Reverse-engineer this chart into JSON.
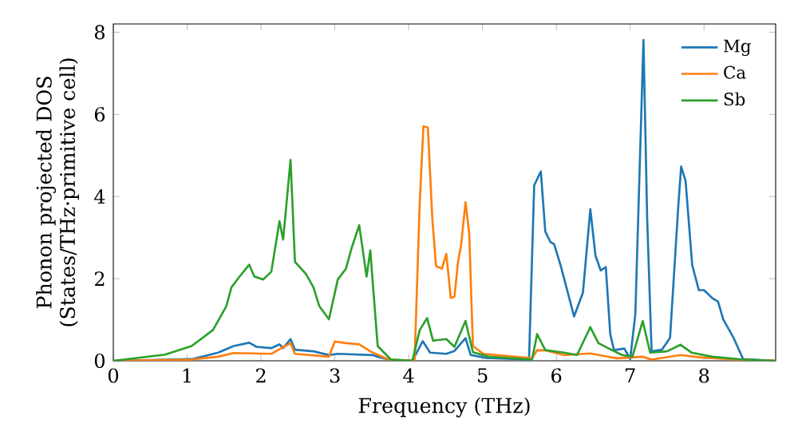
{
  "chart_data": {
    "type": "line",
    "xlabel": "Frequency (THz)",
    "ylabel": "Phonon projected DOS\n(States/THz·primitive cell)",
    "xlim": [
      0,
      8.97
    ],
    "ylim": [
      0,
      8.2
    ],
    "xticks": [
      0,
      1,
      2,
      3,
      4,
      5,
      6,
      7,
      8
    ],
    "yticks": [
      0,
      2,
      4,
      6,
      8
    ],
    "legend": "top right",
    "grid": false,
    "marker": "none",
    "line_style": "solid",
    "series": [
      {
        "name": "Mg",
        "color": "#1f77b4",
        "x": [
          0,
          1.06,
          1.42,
          1.63,
          1.84,
          1.94,
          2.14,
          2.25,
          2.3,
          2.4,
          2.46,
          2.71,
          2.92,
          3.04,
          3.51,
          3.58,
          3.73,
          4.05,
          4.19,
          4.29,
          4.51,
          4.62,
          4.77,
          4.84,
          5.05,
          5.63,
          5.7,
          5.79,
          5.85,
          5.92,
          5.97,
          6.06,
          6.24,
          6.36,
          6.46,
          6.53,
          6.6,
          6.67,
          6.73,
          6.78,
          6.92,
          7.0,
          7.07,
          7.18,
          7.23,
          7.29,
          7.43,
          7.54,
          7.65,
          7.69,
          7.75,
          7.84,
          7.93,
          8.0,
          8.11,
          8.19,
          8.26,
          8.4,
          8.53,
          8.97
        ],
        "values": [
          0,
          0.04,
          0.2,
          0.36,
          0.44,
          0.34,
          0.31,
          0.4,
          0.31,
          0.53,
          0.27,
          0.23,
          0.14,
          0.17,
          0.14,
          0.1,
          0.03,
          0,
          0.48,
          0.2,
          0.17,
          0.24,
          0.55,
          0.14,
          0.07,
          0.03,
          4.27,
          4.61,
          3.15,
          2.89,
          2.84,
          2.31,
          1.08,
          1.66,
          3.69,
          2.56,
          2.2,
          2.28,
          0.65,
          0.26,
          0.3,
          0.04,
          1.14,
          7.81,
          3.47,
          0.23,
          0.27,
          0.56,
          3.73,
          4.73,
          4.38,
          2.33,
          1.72,
          1.72,
          1.53,
          1.44,
          1.01,
          0.56,
          0.04,
          0
        ]
      },
      {
        "name": "Ca",
        "color": "#ff7f0e",
        "x": [
          0,
          1.06,
          1.42,
          1.63,
          2.14,
          2.4,
          2.46,
          2.92,
          3.0,
          3.15,
          3.33,
          3.48,
          3.73,
          4.08,
          4.15,
          4.2,
          4.26,
          4.32,
          4.37,
          4.45,
          4.51,
          4.57,
          4.62,
          4.67,
          4.71,
          4.77,
          4.82,
          4.87,
          5.01,
          5.67,
          5.74,
          5.87,
          6.1,
          6.46,
          6.82,
          7.17,
          7.29,
          7.68,
          7.97,
          8.47,
          8.97
        ],
        "values": [
          0,
          0.03,
          0.1,
          0.19,
          0.17,
          0.43,
          0.17,
          0.1,
          0.47,
          0.43,
          0.4,
          0.23,
          0.03,
          0,
          3.86,
          5.71,
          5.68,
          3.47,
          2.31,
          2.24,
          2.6,
          1.53,
          1.56,
          2.43,
          2.82,
          3.86,
          3.1,
          0.36,
          0.17,
          0.06,
          0.26,
          0.25,
          0.14,
          0.18,
          0.06,
          0.1,
          0.03,
          0.14,
          0.08,
          0.03,
          0
        ]
      },
      {
        "name": "Sb",
        "color": "#2ca02c",
        "x": [
          0,
          0.7,
          1.06,
          1.35,
          1.53,
          1.6,
          1.71,
          1.84,
          1.91,
          2.03,
          2.14,
          2.25,
          2.3,
          2.4,
          2.46,
          2.61,
          2.71,
          2.79,
          2.92,
          3.04,
          3.15,
          3.23,
          3.33,
          3.43,
          3.48,
          3.58,
          3.76,
          4.05,
          4.15,
          4.25,
          4.33,
          4.51,
          4.62,
          4.77,
          4.87,
          5.09,
          5.67,
          5.74,
          5.85,
          6.1,
          6.28,
          6.46,
          6.57,
          6.71,
          6.89,
          7.03,
          7.17,
          7.27,
          7.5,
          7.68,
          7.83,
          8.11,
          8.54,
          8.97
        ],
        "values": [
          0,
          0.15,
          0.36,
          0.75,
          1.33,
          1.79,
          2.05,
          2.34,
          2.05,
          1.98,
          2.17,
          3.4,
          2.95,
          4.89,
          2.41,
          2.11,
          1.79,
          1.33,
          1.01,
          1.98,
          2.24,
          2.76,
          3.3,
          2.05,
          2.69,
          0.36,
          0.03,
          0,
          0.75,
          1.04,
          0.49,
          0.53,
          0.34,
          0.97,
          0.21,
          0.1,
          0.03,
          0.65,
          0.26,
          0.2,
          0.14,
          0.82,
          0.43,
          0.3,
          0.14,
          0.1,
          0.97,
          0.2,
          0.23,
          0.39,
          0.2,
          0.1,
          0.03,
          0
        ]
      }
    ]
  }
}
